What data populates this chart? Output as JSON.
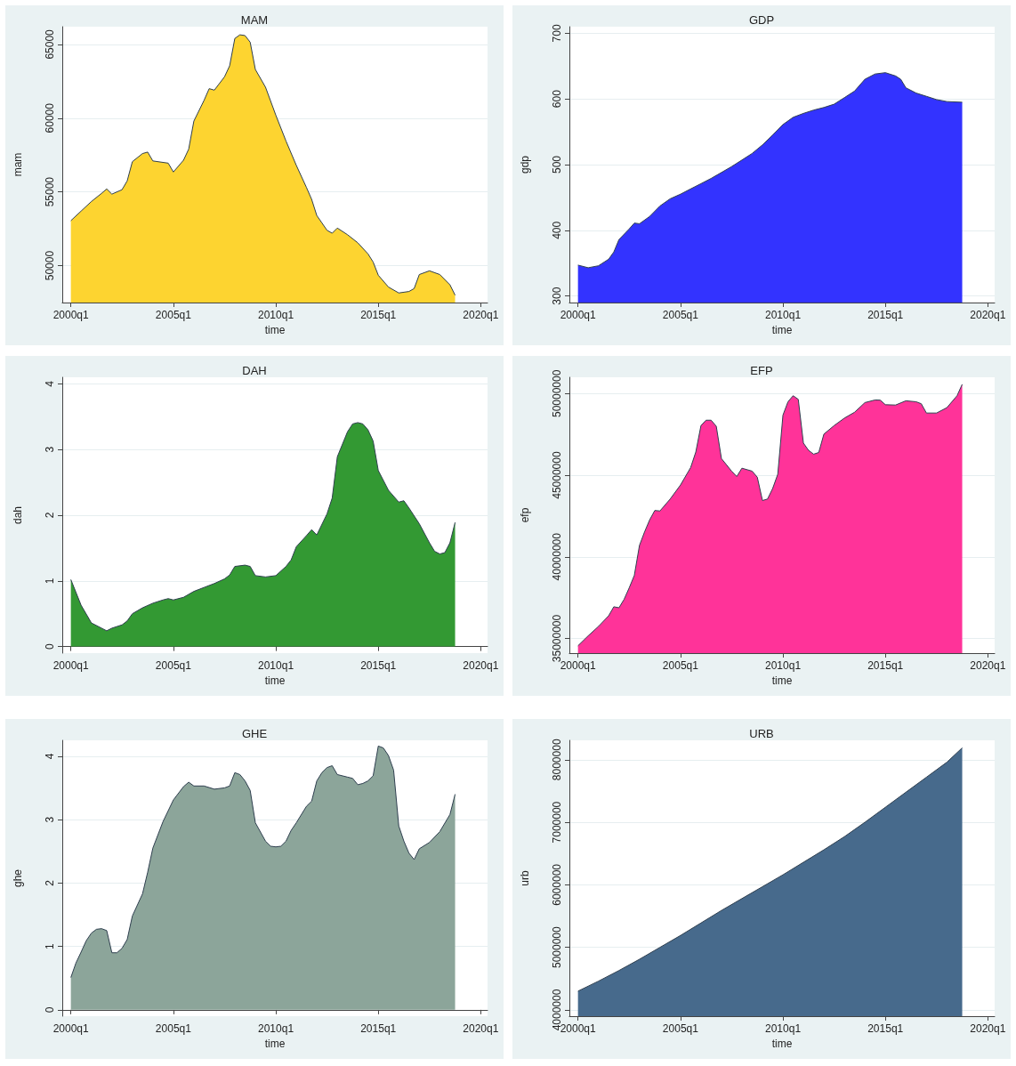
{
  "chart_data": [
    {
      "type": "area",
      "title": "MAM",
      "xlabel": "time",
      "ylabel": "mam",
      "grid": "y",
      "xlim": [
        "1999-08",
        "2020-05"
      ],
      "xticks": [
        {
          "value": "2000-01",
          "label": "2000q1"
        },
        {
          "value": "2005-01",
          "label": "2005q1"
        },
        {
          "value": "2010-01",
          "label": "2010q1"
        },
        {
          "value": "2015-01",
          "label": "2015q1"
        },
        {
          "value": "2020-01",
          "label": "2020q1"
        }
      ],
      "ylim": [
        47500,
        66200
      ],
      "yticks": [
        50000,
        55000,
        60000,
        65000
      ],
      "x": [
        "2000-01",
        "2000-07",
        "2001-01",
        "2001-07",
        "2001-10",
        "2002-01",
        "2002-07",
        "2002-10",
        "2003-01",
        "2003-07",
        "2003-10",
        "2004-01",
        "2004-10",
        "2005-01",
        "2005-07",
        "2005-10",
        "2006-01",
        "2006-07",
        "2006-10",
        "2007-01",
        "2007-07",
        "2007-10",
        "2008-01",
        "2008-04",
        "2008-07",
        "2008-10",
        "2009-01",
        "2009-07",
        "2010-01",
        "2010-07",
        "2011-01",
        "2011-07",
        "2011-10",
        "2012-01",
        "2012-07",
        "2012-10",
        "2013-01",
        "2013-07",
        "2014-01",
        "2014-07",
        "2014-10",
        "2015-01",
        "2015-07",
        "2016-01",
        "2016-07",
        "2016-10",
        "2017-01",
        "2017-07",
        "2018-01",
        "2018-07",
        "2018-10"
      ],
      "series": [
        {
          "color": "#fdd430",
          "values": [
            53050,
            53700,
            54350,
            54900,
            55200,
            54850,
            55150,
            55750,
            57050,
            57600,
            57700,
            57100,
            56950,
            56350,
            57150,
            57900,
            59800,
            61200,
            62000,
            61900,
            62800,
            63550,
            65400,
            65650,
            65600,
            65150,
            63300,
            62100,
            60200,
            58450,
            56800,
            55300,
            54500,
            53400,
            52400,
            52200,
            52550,
            52100,
            51550,
            50800,
            50250,
            49350,
            48550,
            48150,
            48250,
            48450,
            49400,
            49650,
            49400,
            48700,
            48000
          ]
        }
      ]
    },
    {
      "type": "area",
      "title": "GDP",
      "xlabel": "time",
      "ylabel": "gdp",
      "grid": "y",
      "xlim": [
        "1999-08",
        "2020-05"
      ],
      "xticks": [
        {
          "value": "2000-01",
          "label": "2000q1"
        },
        {
          "value": "2005-01",
          "label": "2005q1"
        },
        {
          "value": "2010-01",
          "label": "2010q1"
        },
        {
          "value": "2015-01",
          "label": "2015q1"
        },
        {
          "value": "2020-01",
          "label": "2020q1"
        }
      ],
      "ylim": [
        290,
        710
      ],
      "yticks": [
        300,
        400,
        500,
        600,
        700
      ],
      "x": [
        "2000-01",
        "2000-07",
        "2001-01",
        "2001-07",
        "2001-10",
        "2002-01",
        "2002-07",
        "2002-10",
        "2003-01",
        "2003-07",
        "2004-01",
        "2004-07",
        "2005-01",
        "2005-07",
        "2006-01",
        "2006-07",
        "2007-01",
        "2007-07",
        "2008-01",
        "2008-07",
        "2009-01",
        "2009-07",
        "2010-01",
        "2010-07",
        "2011-01",
        "2011-07",
        "2012-01",
        "2012-07",
        "2013-01",
        "2013-07",
        "2014-01",
        "2014-07",
        "2015-01",
        "2015-07",
        "2015-10",
        "2016-01",
        "2016-07",
        "2017-01",
        "2017-07",
        "2018-01",
        "2018-10"
      ],
      "series": [
        {
          "color": "#3333ff",
          "values": [
            347,
            343,
            346,
            356,
            367,
            386,
            402,
            411,
            410,
            421,
            437,
            448,
            455,
            463,
            471,
            479,
            488,
            497,
            507,
            517,
            530,
            545,
            561,
            572,
            578,
            583,
            587,
            592,
            602,
            612,
            630,
            638,
            640,
            635,
            630,
            617,
            609,
            604,
            599,
            596,
            595
          ]
        }
      ]
    },
    {
      "type": "area",
      "title": "DAH",
      "xlabel": "time",
      "ylabel": "dah",
      "grid": "y",
      "xlim": [
        "1999-08",
        "2020-05"
      ],
      "xticks": [
        {
          "value": "2000-01",
          "label": "2000q1"
        },
        {
          "value": "2005-01",
          "label": "2005q1"
        },
        {
          "value": "2010-01",
          "label": "2010q1"
        },
        {
          "value": "2015-01",
          "label": "2015q1"
        },
        {
          "value": "2020-01",
          "label": "2020q1"
        }
      ],
      "ylim": [
        -0.1,
        4.1
      ],
      "yticks": [
        0,
        1,
        2,
        3,
        4
      ],
      "x": [
        "2000-01",
        "2000-07",
        "2001-01",
        "2001-07",
        "2001-10",
        "2002-01",
        "2002-07",
        "2002-10",
        "2003-01",
        "2003-07",
        "2004-01",
        "2004-07",
        "2004-10",
        "2005-01",
        "2005-07",
        "2006-01",
        "2006-07",
        "2007-01",
        "2007-07",
        "2007-10",
        "2008-01",
        "2008-07",
        "2008-10",
        "2009-01",
        "2009-07",
        "2010-01",
        "2010-07",
        "2010-10",
        "2011-01",
        "2011-07",
        "2011-10",
        "2012-01",
        "2012-07",
        "2012-10",
        "2013-01",
        "2013-07",
        "2013-10",
        "2014-01",
        "2014-04",
        "2014-07",
        "2014-10",
        "2015-01",
        "2015-07",
        "2016-01",
        "2016-04",
        "2016-07",
        "2017-01",
        "2017-07",
        "2017-10",
        "2018-01",
        "2018-04",
        "2018-07",
        "2018-10"
      ],
      "series": [
        {
          "color": "#339933",
          "values": [
            1.02,
            0.63,
            0.36,
            0.28,
            0.24,
            0.28,
            0.33,
            0.39,
            0.5,
            0.59,
            0.66,
            0.71,
            0.73,
            0.71,
            0.75,
            0.84,
            0.9,
            0.96,
            1.03,
            1.09,
            1.22,
            1.24,
            1.22,
            1.08,
            1.06,
            1.08,
            1.22,
            1.32,
            1.52,
            1.69,
            1.78,
            1.7,
            2.02,
            2.26,
            2.89,
            3.27,
            3.39,
            3.41,
            3.39,
            3.3,
            3.13,
            2.68,
            2.38,
            2.2,
            2.22,
            2.11,
            1.87,
            1.58,
            1.45,
            1.41,
            1.43,
            1.58,
            1.89
          ]
        }
      ]
    },
    {
      "type": "area",
      "title": "EFP",
      "xlabel": "time",
      "ylabel": "efp",
      "grid": "y",
      "xlim": [
        "1999-08",
        "2020-05"
      ],
      "xticks": [
        {
          "value": "2000-01",
          "label": "2000q1"
        },
        {
          "value": "2005-01",
          "label": "2005q1"
        },
        {
          "value": "2010-01",
          "label": "2010q1"
        },
        {
          "value": "2015-01",
          "label": "2015q1"
        },
        {
          "value": "2020-01",
          "label": "2020q1"
        }
      ],
      "ylim": [
        34100000,
        51000000
      ],
      "yticks": [
        35000000,
        40000000,
        45000000,
        50000000
      ],
      "x": [
        "2000-01",
        "2000-07",
        "2001-01",
        "2001-07",
        "2001-10",
        "2002-01",
        "2002-04",
        "2002-07",
        "2002-10",
        "2003-01",
        "2003-04",
        "2003-07",
        "2003-10",
        "2004-01",
        "2004-07",
        "2005-01",
        "2005-07",
        "2005-10",
        "2006-01",
        "2006-04",
        "2006-07",
        "2006-10",
        "2007-01",
        "2007-07",
        "2007-10",
        "2008-01",
        "2008-07",
        "2008-10",
        "2009-01",
        "2009-04",
        "2009-07",
        "2009-10",
        "2010-01",
        "2010-04",
        "2010-07",
        "2010-10",
        "2011-01",
        "2011-04",
        "2011-07",
        "2011-10",
        "2012-01",
        "2012-07",
        "2013-01",
        "2013-07",
        "2014-01",
        "2014-07",
        "2014-10",
        "2015-01",
        "2015-07",
        "2016-01",
        "2016-07",
        "2016-10",
        "2017-01",
        "2017-07",
        "2018-01",
        "2018-07",
        "2018-10"
      ],
      "series": [
        {
          "color": "#ff3399",
          "values": [
            34550000,
            35160000,
            35740000,
            36390000,
            36940000,
            36880000,
            37390000,
            38090000,
            38860000,
            40700000,
            41520000,
            42260000,
            42840000,
            42810000,
            43540000,
            44400000,
            45470000,
            46420000,
            48040000,
            48370000,
            48370000,
            48000000,
            46020000,
            45250000,
            44920000,
            45430000,
            45250000,
            44880000,
            43450000,
            43540000,
            44180000,
            45060000,
            48680000,
            49500000,
            49870000,
            49650000,
            46970000,
            46530000,
            46290000,
            46390000,
            47520000,
            48040000,
            48500000,
            48860000,
            49450000,
            49610000,
            49600000,
            49320000,
            49300000,
            49560000,
            49500000,
            49380000,
            48810000,
            48810000,
            49140000,
            49870000,
            50570000
          ]
        }
      ]
    },
    {
      "type": "area",
      "title": "GHE",
      "xlabel": "time",
      "ylabel": "ghe",
      "grid": "y",
      "xlim": [
        "1999-08",
        "2020-05"
      ],
      "xticks": [
        {
          "value": "2000-01",
          "label": "2000q1"
        },
        {
          "value": "2005-01",
          "label": "2005q1"
        },
        {
          "value": "2010-01",
          "label": "2010q1"
        },
        {
          "value": "2015-01",
          "label": "2015q1"
        },
        {
          "value": "2020-01",
          "label": "2020q1"
        }
      ],
      "ylim": [
        -0.1,
        4.25
      ],
      "yticks": [
        0,
        1,
        2,
        3,
        4
      ],
      "x": [
        "2000-01",
        "2000-04",
        "2000-07",
        "2000-10",
        "2001-01",
        "2001-04",
        "2001-07",
        "2001-10",
        "2002-01",
        "2002-04",
        "2002-07",
        "2002-10",
        "2003-01",
        "2003-07",
        "2003-10",
        "2004-01",
        "2004-07",
        "2005-01",
        "2005-07",
        "2005-10",
        "2006-01",
        "2006-07",
        "2007-01",
        "2007-07",
        "2007-10",
        "2008-01",
        "2008-04",
        "2008-07",
        "2008-10",
        "2009-01",
        "2009-07",
        "2009-10",
        "2010-01",
        "2010-04",
        "2010-07",
        "2010-10",
        "2011-01",
        "2011-07",
        "2011-10",
        "2012-01",
        "2012-04",
        "2012-07",
        "2012-10",
        "2013-01",
        "2013-07",
        "2013-10",
        "2014-01",
        "2014-04",
        "2014-07",
        "2014-10",
        "2015-01",
        "2015-04",
        "2015-07",
        "2015-10",
        "2016-01",
        "2016-04",
        "2016-07",
        "2016-10",
        "2017-01",
        "2017-07",
        "2018-01",
        "2018-07",
        "2018-10"
      ],
      "series": [
        {
          "color": "#8ca59a",
          "values": [
            0.51,
            0.74,
            0.91,
            1.09,
            1.21,
            1.27,
            1.28,
            1.25,
            0.9,
            0.9,
            0.97,
            1.11,
            1.48,
            1.83,
            2.17,
            2.55,
            2.97,
            3.31,
            3.52,
            3.59,
            3.53,
            3.53,
            3.48,
            3.5,
            3.53,
            3.74,
            3.71,
            3.61,
            3.46,
            2.95,
            2.66,
            2.58,
            2.57,
            2.58,
            2.66,
            2.83,
            2.95,
            3.21,
            3.29,
            3.61,
            3.74,
            3.82,
            3.85,
            3.71,
            3.67,
            3.65,
            3.55,
            3.57,
            3.61,
            3.69,
            4.16,
            4.13,
            4.01,
            3.78,
            2.9,
            2.66,
            2.47,
            2.37,
            2.54,
            2.64,
            2.81,
            3.08,
            3.4
          ]
        }
      ]
    },
    {
      "type": "area",
      "title": "URB",
      "xlabel": "time",
      "ylabel": "urb",
      "grid": "y",
      "xlim": [
        "1999-08",
        "2020-05"
      ],
      "xticks": [
        {
          "value": "2000-01",
          "label": "2000q1"
        },
        {
          "value": "2005-01",
          "label": "2005q1"
        },
        {
          "value": "2010-01",
          "label": "2010q1"
        },
        {
          "value": "2015-01",
          "label": "2015q1"
        },
        {
          "value": "2020-01",
          "label": "2020q1"
        }
      ],
      "ylim": [
        3900000,
        8310000
      ],
      "yticks": [
        4000000,
        5000000,
        6000000,
        7000000,
        8000000
      ],
      "x": [
        "2000-01",
        "2001-01",
        "2002-01",
        "2003-01",
        "2004-01",
        "2005-01",
        "2006-01",
        "2007-01",
        "2008-01",
        "2009-01",
        "2010-01",
        "2011-01",
        "2012-01",
        "2013-01",
        "2014-01",
        "2015-01",
        "2016-01",
        "2017-01",
        "2018-01",
        "2018-10"
      ],
      "series": [
        {
          "color": "#476a8c",
          "values": [
            4300000,
            4460000,
            4630000,
            4810000,
            5000000,
            5190000,
            5390000,
            5590000,
            5780000,
            5970000,
            6160000,
            6360000,
            6560000,
            6770000,
            7000000,
            7240000,
            7480000,
            7720000,
            7960000,
            8190000
          ]
        }
      ]
    }
  ]
}
